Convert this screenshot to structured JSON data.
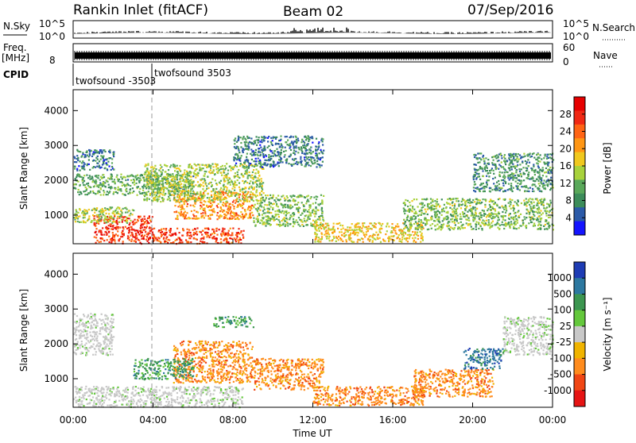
{
  "header": {
    "station": "Rankin Inlet (fitACF)",
    "beam": "Beam 02",
    "date": "07/Sep/2016"
  },
  "strip_labels": {
    "nsky": "N.Sky",
    "nsky_ticks": [
      "10^5",
      "10^0"
    ],
    "nsearch": "N.Search",
    "freq_top": "Freq.",
    "freq_unit": "[MHz]",
    "freq_ticks": [
      "8"
    ],
    "nave_ticks": [
      "60",
      "0"
    ],
    "nave": "Nave",
    "cpid": "CPID",
    "cpid_modes": [
      "twofsound -3503",
      "twofsound 3503"
    ]
  },
  "colors": {
    "power_scale": [
      "#1414ff",
      "#2b5aa8",
      "#3c8c5a",
      "#5aa85a",
      "#a8d23c",
      "#f0c81e",
      "#ff9614",
      "#ff6414",
      "#f02814",
      "#e60000"
    ],
    "velocity_scale": [
      "#1e3cb4",
      "#2d78a0",
      "#3c9650",
      "#64c83c",
      "#c8c8c8",
      "#f0b400",
      "#ff8c1e",
      "#f04614",
      "#e61414"
    ],
    "frame": "#000000"
  },
  "chart_data": [
    {
      "type": "heatmap",
      "name": "power",
      "ylabel": "Slant Range [km]",
      "yticks": [
        1000,
        2000,
        3000,
        4000
      ],
      "ylim": [
        180,
        4600
      ],
      "xlim_hours": [
        0,
        24
      ],
      "colorbar_label": "Power [dB]",
      "colorbar_ticks": [
        4,
        8,
        12,
        16,
        20,
        24,
        28
      ],
      "colorbar_range": [
        0,
        32
      ],
      "regions": [
        {
          "x": [
            1.0,
            4.0
          ],
          "y": [
            200,
            1000
          ],
          "value": 28
        },
        {
          "x": [
            4.0,
            8.5
          ],
          "y": [
            200,
            650
          ],
          "value": 27
        },
        {
          "x": [
            5.0,
            9.0
          ],
          "y": [
            900,
            1700
          ],
          "value": 22
        },
        {
          "x": [
            0.0,
            3.0
          ],
          "y": [
            800,
            1250
          ],
          "value": 14
        },
        {
          "x": [
            0.0,
            6.0
          ],
          "y": [
            1600,
            2200
          ],
          "value": 10
        },
        {
          "x": [
            3.5,
            9.5
          ],
          "y": [
            1400,
            2500
          ],
          "value": 14
        },
        {
          "x": [
            9.0,
            12.5
          ],
          "y": [
            700,
            1600
          ],
          "value": 12
        },
        {
          "x": [
            12.0,
            17.5
          ],
          "y": [
            250,
            800
          ],
          "value": 18
        },
        {
          "x": [
            16.5,
            24.0
          ],
          "y": [
            600,
            1500
          ],
          "value": 12
        },
        {
          "x": [
            20.0,
            24.0
          ],
          "y": [
            1700,
            2800
          ],
          "value": 8
        },
        {
          "x": [
            0.0,
            2.0
          ],
          "y": [
            2300,
            2900
          ],
          "value": 6
        },
        {
          "x": [
            8.0,
            12.5
          ],
          "y": [
            2400,
            3300
          ],
          "value": 6
        }
      ]
    },
    {
      "type": "heatmap",
      "name": "velocity",
      "ylabel": "Slant Range [km]",
      "yticks": [
        1000,
        2000,
        3000,
        4000
      ],
      "ylim": [
        180,
        4600
      ],
      "xlabel": "Time UT",
      "xticks": [
        "00:00",
        "04:00",
        "08:00",
        "12:00",
        "16:00",
        "20:00",
        "00:00"
      ],
      "xlim_hours": [
        0,
        24
      ],
      "colorbar_label": "Velocity [m s⁻¹]",
      "colorbar_ticks": [
        1000,
        500,
        100,
        25,
        -25,
        -100,
        -500,
        -1000
      ],
      "regions": [
        {
          "x": [
            0.0,
            8.5
          ],
          "y": [
            200,
            800
          ],
          "value": 0
        },
        {
          "x": [
            0.0,
            2.0
          ],
          "y": [
            1700,
            2900
          ],
          "value": 0
        },
        {
          "x": [
            21.5,
            24.0
          ],
          "y": [
            1700,
            2800
          ],
          "value": 0
        },
        {
          "x": [
            5.0,
            9.0
          ],
          "y": [
            900,
            2100
          ],
          "value": -150
        },
        {
          "x": [
            3.0,
            6.0
          ],
          "y": [
            1000,
            1600
          ],
          "value": 200
        },
        {
          "x": [
            9.0,
            12.5
          ],
          "y": [
            700,
            1600
          ],
          "value": -150
        },
        {
          "x": [
            12.0,
            17.5
          ],
          "y": [
            250,
            800
          ],
          "value": -200
        },
        {
          "x": [
            17.0,
            21.0
          ],
          "y": [
            500,
            1300
          ],
          "value": -150
        },
        {
          "x": [
            19.5,
            21.5
          ],
          "y": [
            1300,
            1900
          ],
          "value": 600
        },
        {
          "x": [
            7.0,
            9.0
          ],
          "y": [
            2500,
            2800
          ],
          "value": 150
        }
      ]
    }
  ]
}
